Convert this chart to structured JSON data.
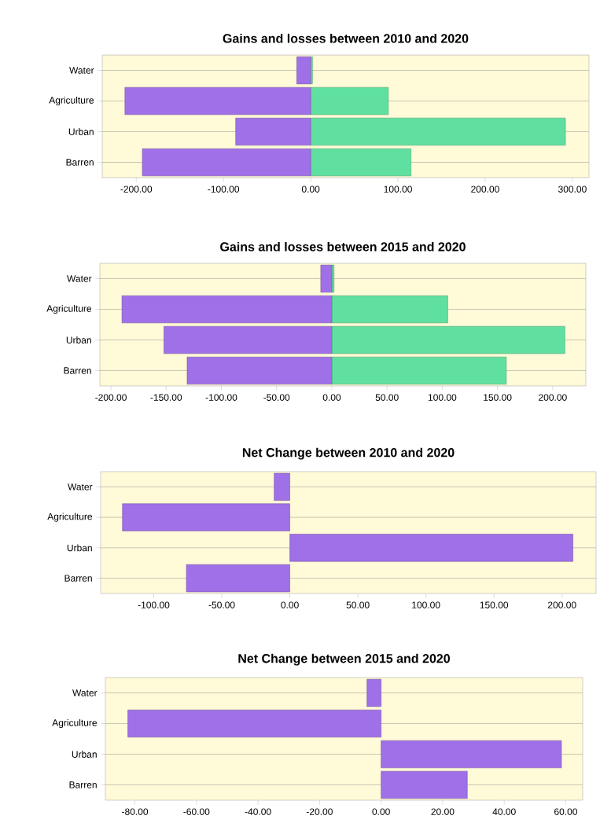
{
  "chart_data": [
    {
      "type": "bar",
      "orientation": "horizontal",
      "stacked": true,
      "title": "Gains and losses between 2010 and 2020",
      "categories": [
        "Water",
        "Agriculture",
        "Urban",
        "Barren"
      ],
      "series": [
        {
          "color": "#a070e8",
          "values": [
            -16,
            -213,
            -86,
            -193
          ]
        },
        {
          "color": "#60e0a0",
          "values": [
            2,
            89,
            292,
            115
          ]
        }
      ],
      "xlim": [
        -239,
        319
      ],
      "xticks": [
        {
          "value": -200,
          "label": "-200.00"
        },
        {
          "value": -100,
          "label": "-100.00"
        },
        {
          "value": 0,
          "label": "0.00"
        },
        {
          "value": 100,
          "label": "100.00"
        },
        {
          "value": 200,
          "label": "200.00"
        },
        {
          "value": 300,
          "label": "300.00"
        }
      ],
      "grid": "y"
    },
    {
      "type": "bar",
      "orientation": "horizontal",
      "stacked": true,
      "title": "Gains and losses between 2015 and 2020",
      "categories": [
        "Water",
        "Agriculture",
        "Urban",
        "Barren"
      ],
      "series": [
        {
          "color": "#a070e8",
          "values": [
            -10,
            -190,
            -152,
            -131
          ]
        },
        {
          "color": "#60e0a0",
          "values": [
            2,
            105,
            211,
            158
          ]
        }
      ],
      "xlim": [
        -210,
        230
      ],
      "xticks": [
        {
          "value": -200,
          "label": "-200.00"
        },
        {
          "value": -150,
          "label": "-150.00"
        },
        {
          "value": -100,
          "label": "-100.00"
        },
        {
          "value": -50,
          "label": "-50.00"
        },
        {
          "value": 0,
          "label": "0.00"
        },
        {
          "value": 50,
          "label": "50.00"
        },
        {
          "value": 100,
          "label": "100.00"
        },
        {
          "value": 150,
          "label": "150.00"
        },
        {
          "value": 200,
          "label": "200.00"
        }
      ],
      "grid": "y"
    },
    {
      "type": "bar",
      "orientation": "horizontal",
      "title": "Net Change between 2010 and 2020",
      "categories": [
        "Water",
        "Agriculture",
        "Urban",
        "Barren"
      ],
      "series": [
        {
          "color": "#a070e8",
          "values": [
            -11.5,
            -123,
            208,
            -76
          ]
        }
      ],
      "xlim": [
        -139,
        225
      ],
      "xticks": [
        {
          "value": -100,
          "label": "-100.00"
        },
        {
          "value": -50,
          "label": "-50.00"
        },
        {
          "value": 0,
          "label": "0.00"
        },
        {
          "value": 50,
          "label": "50.00"
        },
        {
          "value": 100,
          "label": "100.00"
        },
        {
          "value": 150,
          "label": "150.00"
        },
        {
          "value": 200,
          "label": "200.00"
        }
      ],
      "grid": "y"
    },
    {
      "type": "bar",
      "orientation": "horizontal",
      "title": "Net Change between 2015 and 2020",
      "categories": [
        "Water",
        "Agriculture",
        "Urban",
        "Barren"
      ],
      "series": [
        {
          "color": "#a070e8",
          "values": [
            -4.6,
            -82.3,
            58.6,
            28
          ]
        }
      ],
      "xlim": [
        -89.6,
        65.5
      ],
      "xticks": [
        {
          "value": -80,
          "label": "-80.00"
        },
        {
          "value": -60,
          "label": "-60.00"
        },
        {
          "value": -40,
          "label": "-40.00"
        },
        {
          "value": -20,
          "label": "-20.00"
        },
        {
          "value": 0,
          "label": "0.00"
        },
        {
          "value": 20,
          "label": "20.00"
        },
        {
          "value": 40,
          "label": "40.00"
        },
        {
          "value": 60,
          "label": "60.00"
        }
      ],
      "grid": "y"
    }
  ]
}
